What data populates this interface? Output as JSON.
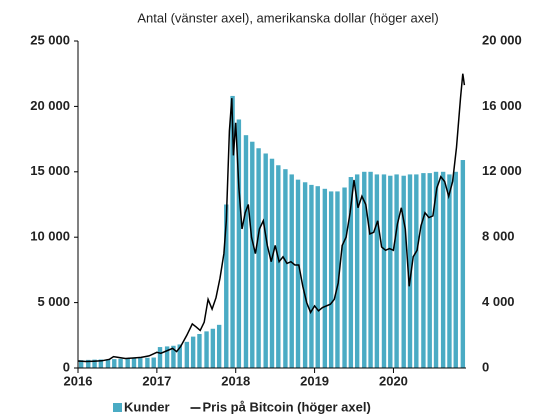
{
  "chart_data": {
    "type": "bar-line",
    "subtitle": "Antal (vänster axel), amerikanska dollar (höger axel)",
    "xlim": [
      2016,
      2020.92
    ],
    "xticks": [
      2016,
      2017,
      2018,
      2019,
      2020
    ],
    "ylim": [
      0,
      25000
    ],
    "yticks": [
      {
        "value": 0,
        "label": "0"
      },
      {
        "value": 5000,
        "label": "5 000"
      },
      {
        "value": 10000,
        "label": "10 000"
      },
      {
        "value": 15000,
        "label": "15 000"
      },
      {
        "value": 20000,
        "label": "20 000"
      },
      {
        "value": 25000,
        "label": "25 000"
      }
    ],
    "y2lim": [
      0,
      20000
    ],
    "y2ticks": [
      {
        "value": 0,
        "label": "0"
      },
      {
        "value": 4000,
        "label": "4 000"
      },
      {
        "value": 8000,
        "label": "8 000"
      },
      {
        "value": 12000,
        "label": "12 000"
      },
      {
        "value": 16000,
        "label": "16 000"
      },
      {
        "value": 20000,
        "label": "20 000"
      }
    ],
    "series": [
      {
        "name": "Kunder",
        "type": "bar",
        "color": "#4aabc4",
        "x": [
          2016.04,
          2016.13,
          2016.21,
          2016.29,
          2016.38,
          2016.46,
          2016.54,
          2016.63,
          2016.71,
          2016.79,
          2016.88,
          2016.96,
          2017.04,
          2017.13,
          2017.21,
          2017.29,
          2017.38,
          2017.46,
          2017.54,
          2017.63,
          2017.71,
          2017.79,
          2017.88,
          2017.96,
          2018.04,
          2018.13,
          2018.21,
          2018.29,
          2018.38,
          2018.46,
          2018.54,
          2018.63,
          2018.71,
          2018.79,
          2018.88,
          2018.96,
          2019.04,
          2019.13,
          2019.21,
          2019.29,
          2019.38,
          2019.46,
          2019.54,
          2019.63,
          2019.71,
          2019.79,
          2019.88,
          2019.96,
          2020.04,
          2020.13,
          2020.21,
          2020.29,
          2020.38,
          2020.46,
          2020.54,
          2020.63,
          2020.71,
          2020.79,
          2020.88
        ],
        "values": [
          600,
          620,
          640,
          650,
          660,
          680,
          700,
          720,
          740,
          760,
          780,
          800,
          1600,
          1650,
          1700,
          1800,
          2000,
          2400,
          2600,
          2800,
          3000,
          3300,
          12500,
          20800,
          19000,
          17800,
          17300,
          16800,
          16400,
          16000,
          15500,
          15200,
          14800,
          14400,
          14200,
          14000,
          13900,
          13700,
          13500,
          13500,
          13800,
          14600,
          14800,
          15000,
          15000,
          14800,
          14800,
          14700,
          14800,
          14700,
          14800,
          14800,
          14900,
          14900,
          15000,
          15000,
          14800,
          15000,
          15900
        ]
      },
      {
        "name": "Pris på Bitcoin (höger axel)",
        "type": "line",
        "axis": "y2",
        "color": "#000000",
        "x": [
          2016.0,
          2016.1,
          2016.2,
          2016.3,
          2016.4,
          2016.45,
          2016.5,
          2016.6,
          2016.7,
          2016.8,
          2016.9,
          2017.0,
          2017.05,
          2017.15,
          2017.2,
          2017.25,
          2017.3,
          2017.38,
          2017.45,
          2017.5,
          2017.55,
          2017.6,
          2017.65,
          2017.7,
          2017.75,
          2017.8,
          2017.85,
          2017.88,
          2017.92,
          2017.95,
          2017.97,
          2018.0,
          2018.04,
          2018.08,
          2018.12,
          2018.16,
          2018.2,
          2018.25,
          2018.3,
          2018.35,
          2018.4,
          2018.45,
          2018.5,
          2018.55,
          2018.6,
          2018.65,
          2018.7,
          2018.75,
          2018.8,
          2018.85,
          2018.9,
          2018.95,
          2019.0,
          2019.05,
          2019.1,
          2019.2,
          2019.25,
          2019.3,
          2019.35,
          2019.4,
          2019.45,
          2019.5,
          2019.55,
          2019.6,
          2019.65,
          2019.7,
          2019.75,
          2019.8,
          2019.85,
          2019.9,
          2019.95,
          2020.0,
          2020.05,
          2020.1,
          2020.15,
          2020.2,
          2020.25,
          2020.3,
          2020.35,
          2020.4,
          2020.45,
          2020.5,
          2020.55,
          2020.6,
          2020.65,
          2020.7,
          2020.75,
          2020.8,
          2020.85,
          2020.88,
          2020.9
        ],
        "values": [
          430,
          400,
          415,
          440,
          530,
          700,
          660,
          580,
          610,
          650,
          740,
          960,
          900,
          1100,
          1200,
          1000,
          1300,
          2000,
          2700,
          2500,
          2300,
          2800,
          4200,
          3600,
          4300,
          5500,
          7000,
          9000,
          14500,
          16500,
          13000,
          15000,
          11000,
          8500,
          9500,
          10000,
          8000,
          7000,
          8500,
          9000,
          7500,
          6500,
          7500,
          6500,
          6800,
          6400,
          6500,
          6300,
          6300,
          5000,
          4000,
          3400,
          3800,
          3500,
          3700,
          3900,
          4200,
          5200,
          7500,
          8000,
          9500,
          11500,
          9800,
          10500,
          10000,
          8200,
          8300,
          9000,
          7400,
          7200,
          7300,
          7200,
          8800,
          9800,
          8500,
          5000,
          6800,
          7200,
          8700,
          9500,
          9200,
          9300,
          11000,
          11700,
          11400,
          10500,
          11400,
          13500,
          16500,
          18000,
          17300
        ]
      }
    ]
  }
}
